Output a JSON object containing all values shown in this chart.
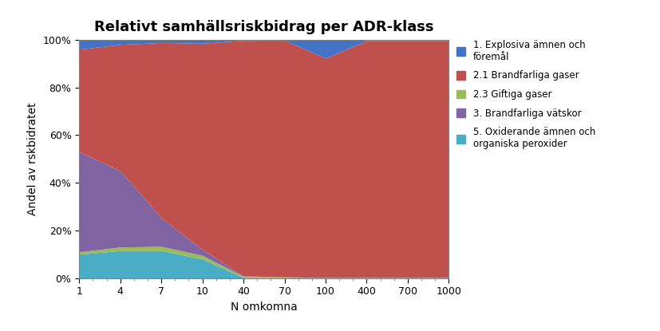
{
  "title": "Relativt samhällsriskbidrag per ADR-klass",
  "xlabel": "N omkomna",
  "ylabel": "Andel av rskbidratet",
  "xtick_labels": [
    "1",
    "4",
    "7",
    "10",
    "40",
    "70",
    "100",
    "400",
    "700",
    "1000"
  ],
  "legend_labels": [
    "1. Explosiva ämnen och\nföremål",
    "2.1 Brandfarliga gaser",
    "2.3 Giftiga gaser",
    "3. Brandfarliga vätskor",
    "5. Oxiderande ämnen och\norganiska peroxider"
  ],
  "colors": {
    "explosive": "#4472C4",
    "brandfarliga_gaser": "#C0504D",
    "giftiga_gaser": "#9BBB59",
    "brandfarliga_vatskor": "#8064A2",
    "oxiderande": "#4BACC6"
  },
  "raw_data": {
    "oxiderande": [
      10.0,
      11.5,
      11.5,
      8.0,
      0.2,
      0.15,
      0.1,
      0.1,
      0.1,
      0.1
    ],
    "giftiga_gaser": [
      1.0,
      1.5,
      1.8,
      1.5,
      0.5,
      0.2,
      0.1,
      0.1,
      0.1,
      0.1
    ],
    "brandfarliga_vatskor": [
      42.0,
      32.0,
      12.0,
      2.5,
      0.2,
      0.1,
      0.1,
      0.1,
      0.1,
      0.1
    ],
    "brandfarliga_gaser": [
      43.0,
      53.0,
      73.5,
      86.5,
      98.8,
      99.3,
      92.0,
      99.3,
      99.3,
      99.3
    ],
    "explosive": [
      4.0,
      2.0,
      1.2,
      1.5,
      0.3,
      0.25,
      7.7,
      0.4,
      0.4,
      0.4
    ]
  },
  "figsize": [
    8.27,
    4.15
  ],
  "dpi": 100
}
